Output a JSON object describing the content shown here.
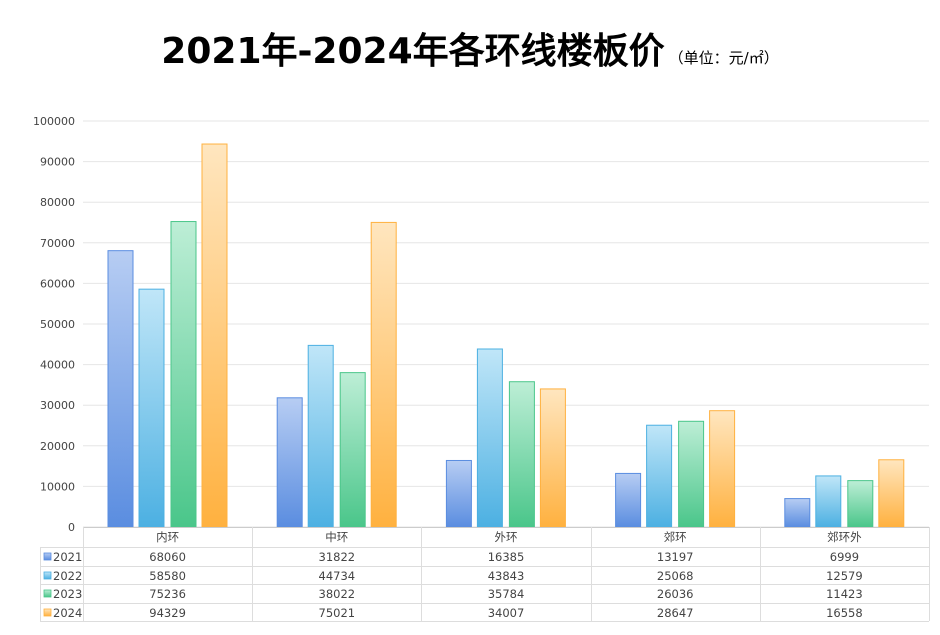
{
  "chart_data": {
    "type": "bar",
    "title": "2021年-2024年各环线楼板价",
    "subtitle": "（单位：元/㎡）",
    "categories": [
      "内环",
      "中环",
      "外环",
      "郊环",
      "郊环外"
    ],
    "series": [
      {
        "name": "2021",
        "values": [
          68060,
          31822,
          16385,
          13197,
          6999
        ],
        "color_top": "#b7cdf3",
        "color_bottom": "#5a8de0",
        "border": "#5a8de0"
      },
      {
        "name": "2022",
        "values": [
          58580,
          44734,
          43843,
          25068,
          12579
        ],
        "color_top": "#c0e6f8",
        "color_bottom": "#4cb0e2",
        "border": "#4cb0e2"
      },
      {
        "name": "2023",
        "values": [
          75236,
          38022,
          35784,
          26036,
          11423
        ],
        "color_top": "#bdeed6",
        "color_bottom": "#4ac68a",
        "border": "#4ac68a"
      },
      {
        "name": "2024",
        "values": [
          94329,
          75021,
          34007,
          28647,
          16558
        ],
        "color_top": "#ffe6bf",
        "color_bottom": "#ffb13f",
        "border": "#ffb13f"
      }
    ],
    "ylim": [
      0,
      100000
    ],
    "yticks": [
      0,
      10000,
      20000,
      30000,
      40000,
      50000,
      60000,
      70000,
      80000,
      90000,
      100000
    ],
    "grid": true,
    "legend": "data-table-bottom"
  }
}
